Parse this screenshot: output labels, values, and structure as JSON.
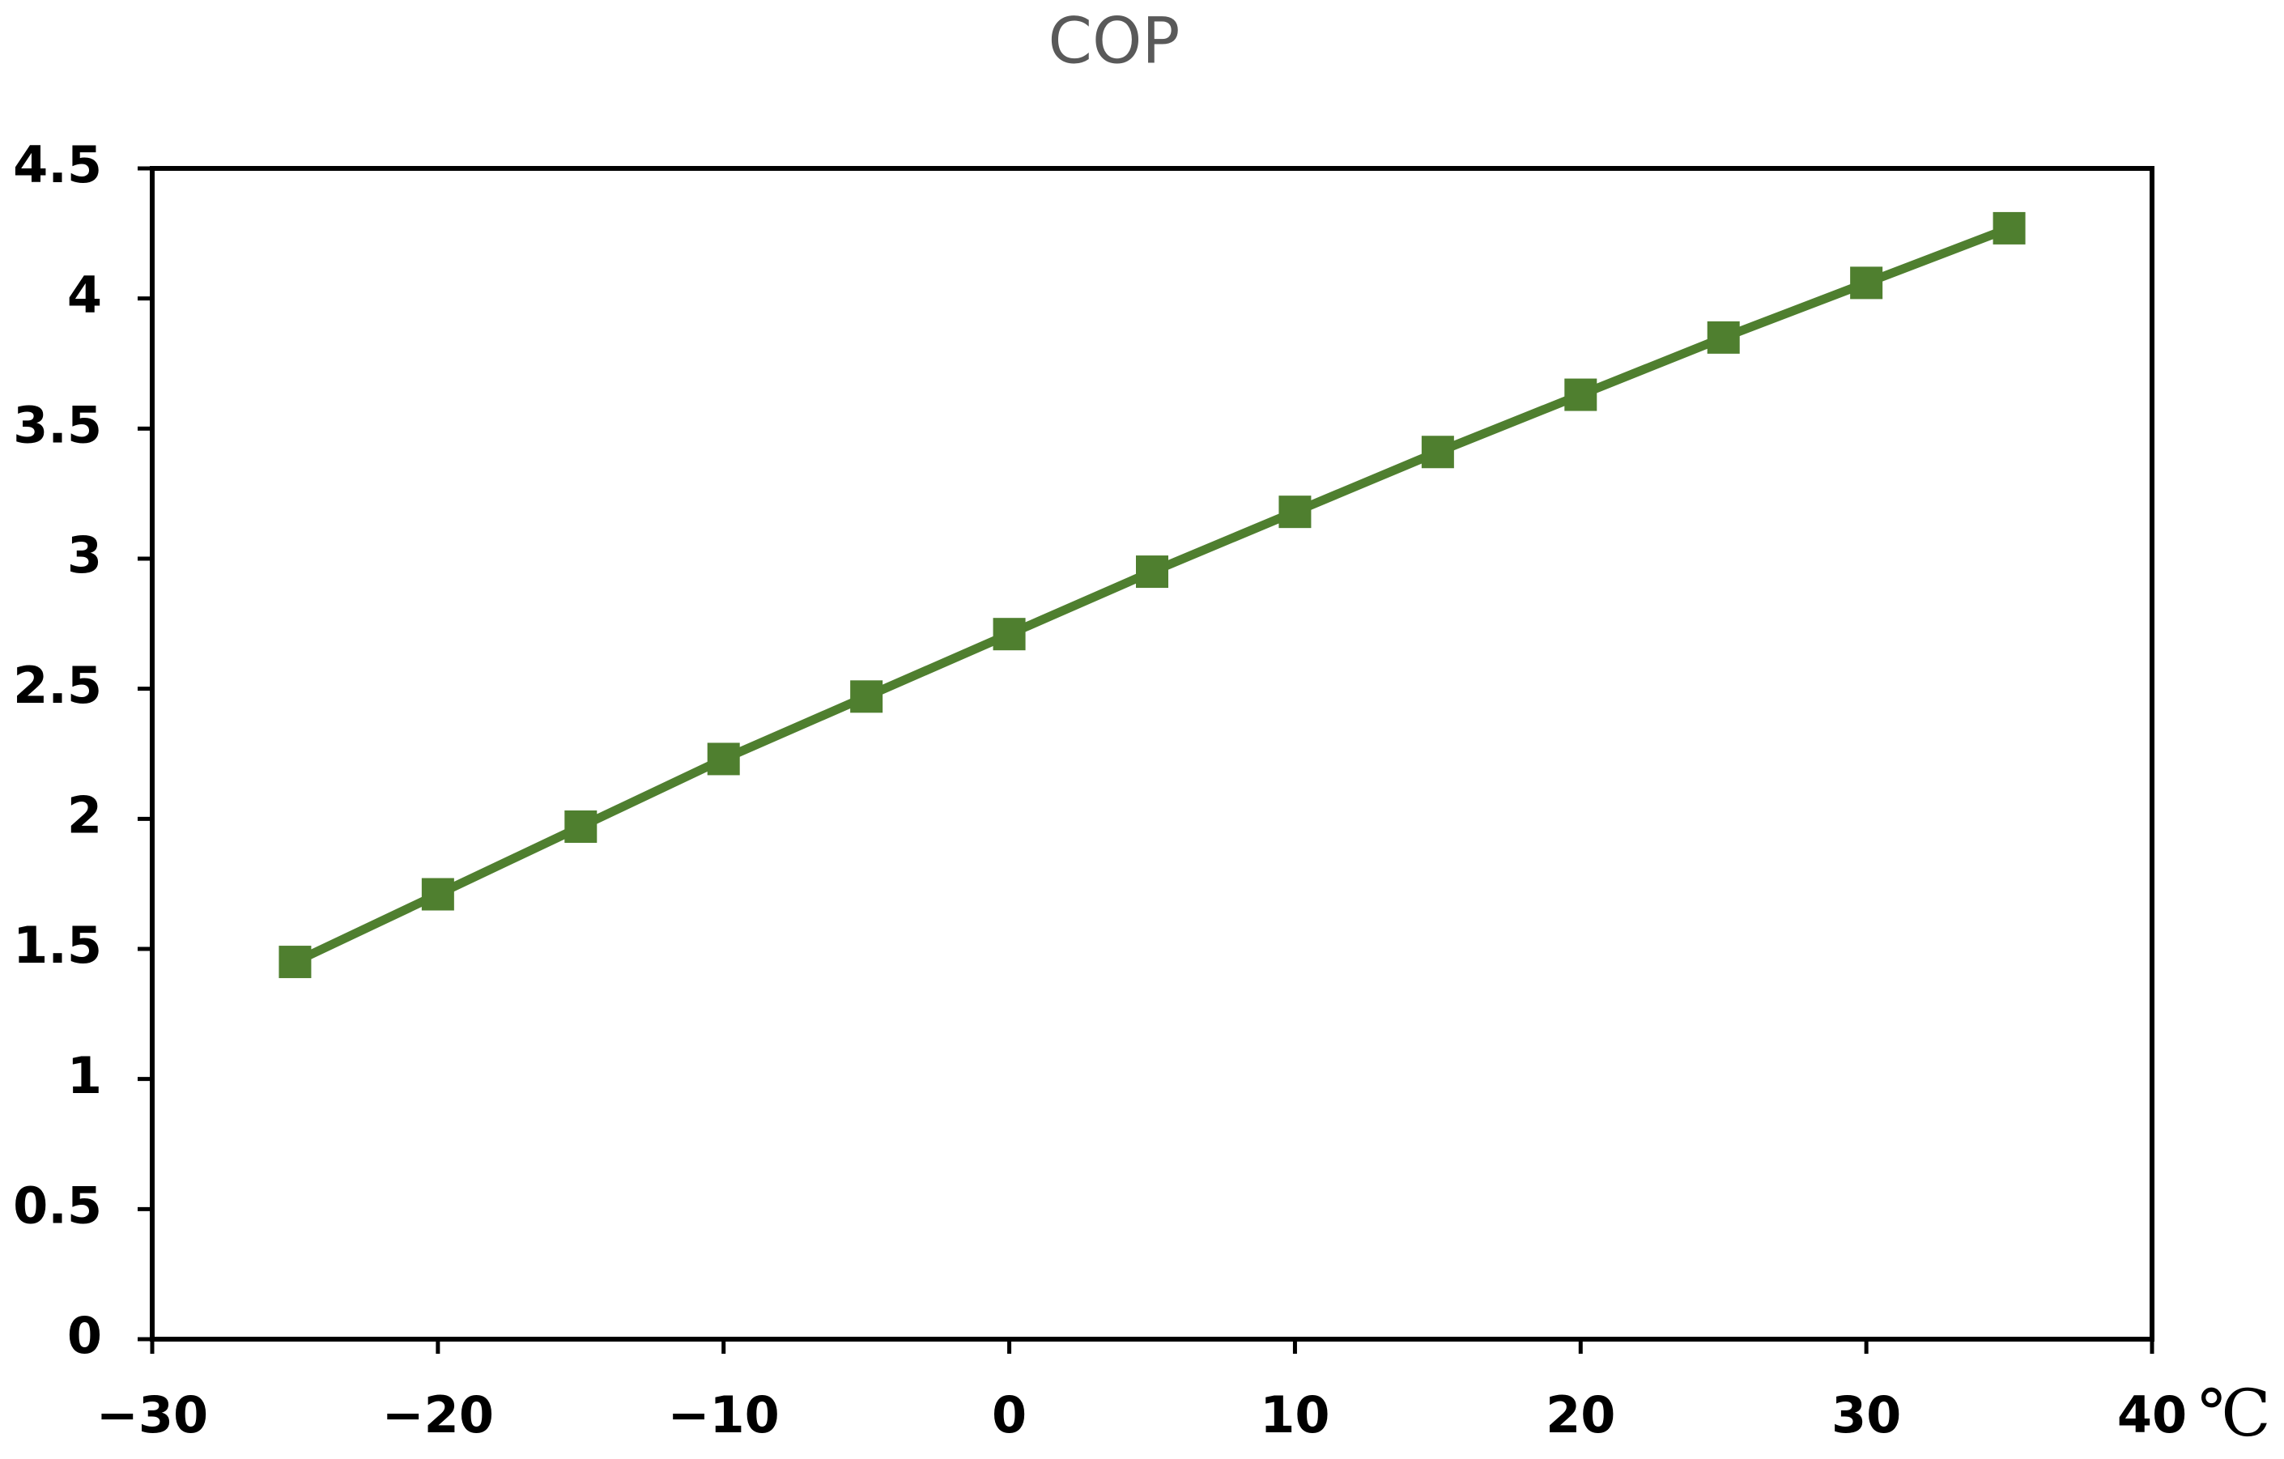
{
  "chart_data": {
    "type": "line",
    "title": "COP",
    "x_label": "℃",
    "x": [
      -25,
      -20,
      -15,
      -10,
      -5,
      0,
      5,
      10,
      15,
      20,
      25,
      30,
      35
    ],
    "series": [
      {
        "name": "COP",
        "color": "#4f7f2f",
        "marker": "square",
        "values": [
          1.45,
          1.71,
          1.97,
          2.23,
          2.47,
          2.71,
          2.95,
          3.18,
          3.41,
          3.63,
          3.85,
          4.06,
          4.27
        ]
      }
    ],
    "xlim": [
      -30,
      40
    ],
    "xticks": [
      {
        "value": -30,
        "label": "−30"
      },
      {
        "value": -20,
        "label": "−20"
      },
      {
        "value": -10,
        "label": "−10"
      },
      0,
      10,
      20,
      30,
      40
    ],
    "ylim": [
      0,
      4.5
    ],
    "yticks": [
      0,
      0.5,
      1,
      1.5,
      2,
      2.5,
      3,
      3.5,
      4,
      4.5
    ],
    "grid": false
  }
}
